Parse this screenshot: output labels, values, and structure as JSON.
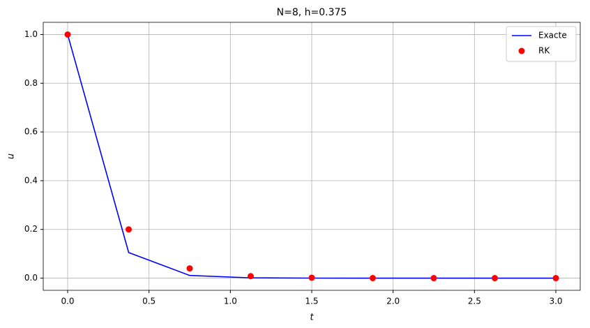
{
  "chart_data": {
    "type": "line",
    "title": "N=8, h=0.375",
    "x_label": "t",
    "y_label": "u",
    "x": [
      0,
      0.375,
      0.75,
      1.125,
      1.5,
      1.875,
      2.25,
      2.625,
      3.0
    ],
    "series": [
      {
        "name": "Exacte",
        "color": "#0000ff",
        "mode": "lines",
        "values": [
          1.0,
          0.105,
          0.011,
          0.0012,
          0.0001,
          0.0,
          0.0,
          0.0,
          0.0
        ]
      },
      {
        "name": "RK",
        "color": "#ff0000",
        "mode": "markers",
        "values": [
          1.0,
          0.2,
          0.04,
          0.008,
          0.0016,
          0.0003,
          0.0001,
          0.0,
          0.0
        ]
      }
    ],
    "xlim": [
      -0.15,
      3.15
    ],
    "ylim": [
      -0.05,
      1.05
    ],
    "xticks": [
      {
        "value": 0,
        "label": "0.0"
      },
      0.5,
      {
        "value": 1,
        "label": "1.0"
      },
      1.5,
      {
        "value": 2,
        "label": "2.0"
      },
      2.5,
      {
        "value": 3,
        "label": "3.0"
      }
    ],
    "yticks": [
      {
        "value": 0,
        "label": "0.0"
      },
      0.2,
      0.4,
      0.6,
      0.8,
      {
        "value": 1,
        "label": "1.0"
      }
    ],
    "grid": true,
    "legend": "upper right"
  }
}
